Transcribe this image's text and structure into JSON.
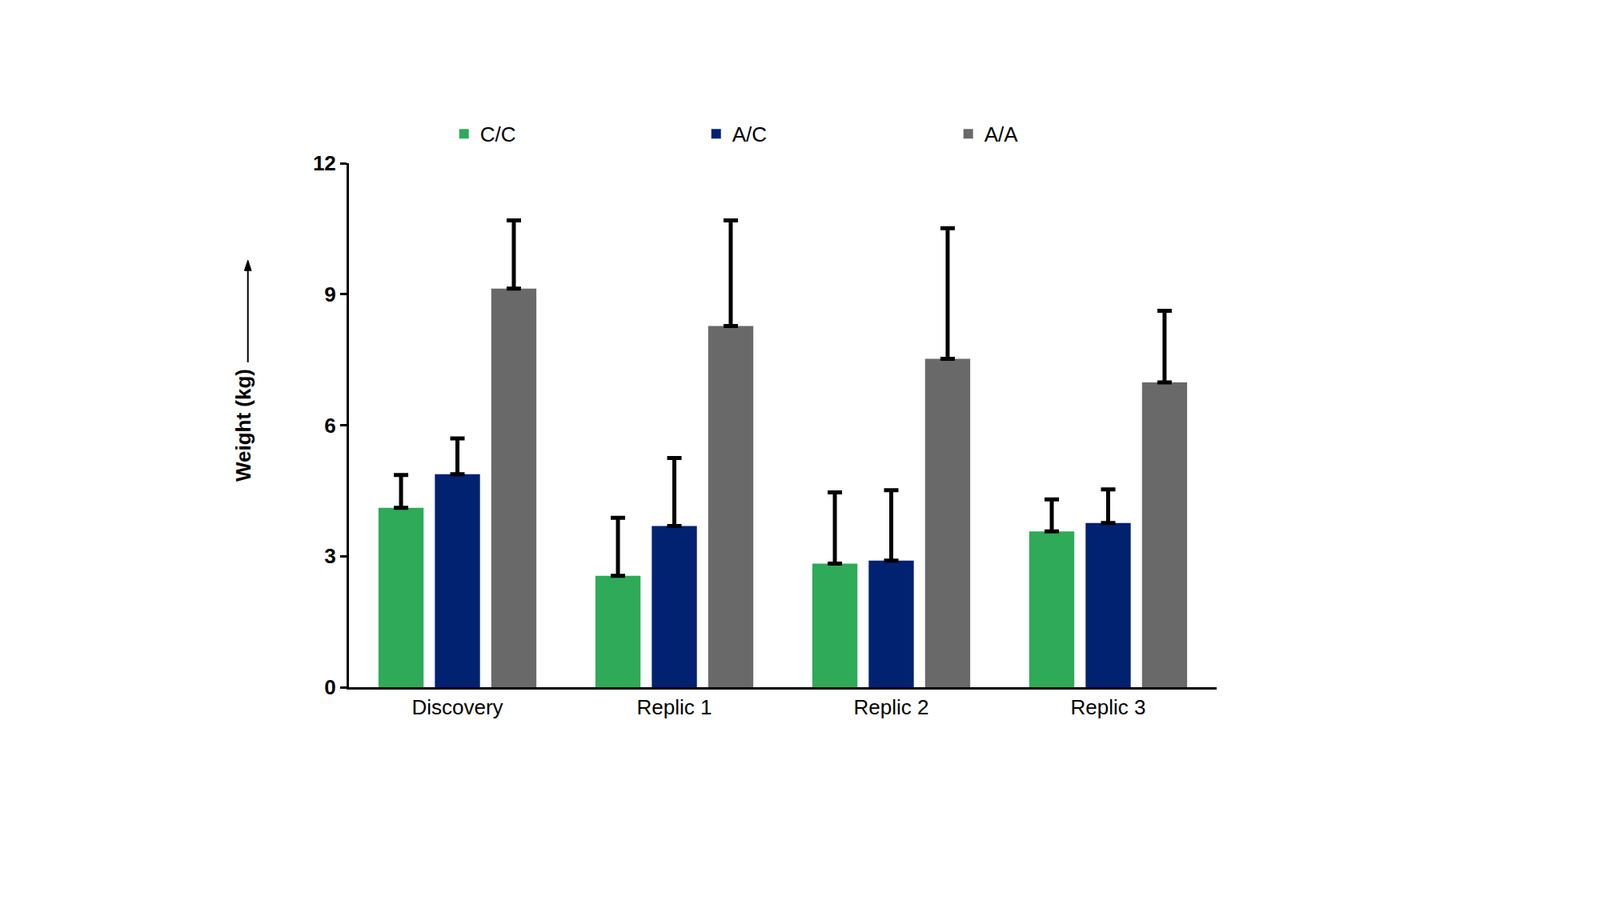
{
  "chart_data": {
    "type": "bar",
    "y_label": "Weight (kg)",
    "categories": [
      "Discovery",
      "Replic 1",
      "Replic 2",
      "Replic 3"
    ],
    "series": [
      {
        "name": "C/C",
        "color": "#2eaa58",
        "values": [
          4.11,
          2.55,
          2.83,
          3.57
        ],
        "errors": [
          0.75,
          1.33,
          1.63,
          0.73
        ]
      },
      {
        "name": "A/C",
        "color": "#012270",
        "values": [
          4.88,
          3.69,
          2.9,
          3.76
        ],
        "errors": [
          0.82,
          1.56,
          1.61,
          0.77
        ]
      },
      {
        "name": "A/A",
        "color": "#696969",
        "values": [
          9.13,
          8.27,
          7.52,
          6.98
        ],
        "errors": [
          1.56,
          2.42,
          2.99,
          1.64
        ]
      }
    ],
    "ylim": [
      0,
      12
    ],
    "yticks": [
      0,
      3,
      6,
      9,
      12
    ],
    "grid": false,
    "legend": "top"
  }
}
